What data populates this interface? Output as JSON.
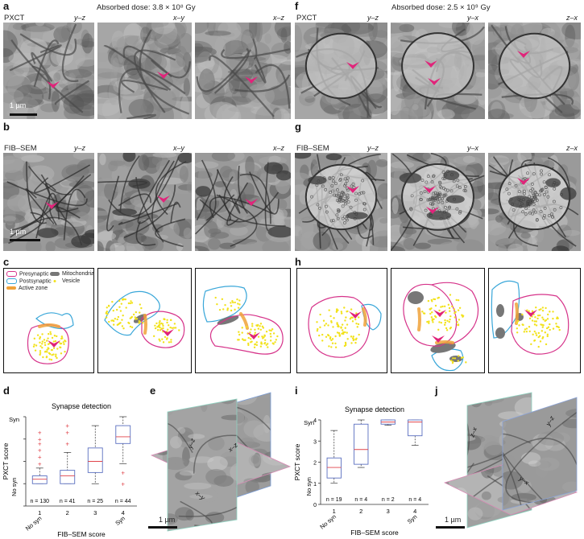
{
  "panels": {
    "a": "a",
    "b": "b",
    "c": "c",
    "d": "d",
    "e": "e",
    "f": "f",
    "g": "g",
    "h": "h",
    "i": "i",
    "j": "j"
  },
  "left": {
    "dose": "Absorbed dose: 3.8 × 10⁸ Gy",
    "row1_label": "PXCT",
    "row2_label": "FIB–SEM",
    "orients": [
      "y–z",
      "x–y",
      "x–z"
    ],
    "scale_label_a": "1 µm",
    "scale_label_b": "1 µm"
  },
  "right": {
    "dose": "Absorbed dose: 2.5 × 10⁹ Gy",
    "row1_label": "PXCT",
    "row2_label": "FIB–SEM",
    "orients": [
      "y–z",
      "y–x",
      "z–x"
    ]
  },
  "legend": {
    "presynaptic": "Presynaptic",
    "postsynaptic": "Postsynaptic",
    "active_zone": "Active zone",
    "mitochondria": "Mitochondria",
    "vesicle": "Vesicle",
    "colors": {
      "presynaptic": "#d6338a",
      "postsynaptic": "#3aa7d9",
      "active_zone": "#f0a23a",
      "mitochondria": "#777777",
      "vesicle": "#f2e21c",
      "arrow": "#e0247a"
    }
  },
  "volume_e": {
    "labels": [
      "y–z",
      "x–z",
      "x–y"
    ],
    "scale": "1 µm"
  },
  "volume_j": {
    "labels": [
      "z–x",
      "y–z",
      "y–x"
    ],
    "scale": "1 µm"
  },
  "chart_data": [
    {
      "type": "box",
      "title": "Synapse detection",
      "xlabel": "FIB–SEM score",
      "ylabel": "PXCT score",
      "categories": [
        "1",
        "2",
        "3",
        "4"
      ],
      "category_sublabels": [
        "No syn",
        "",
        "",
        "Syn"
      ],
      "ytick_labels": [
        "0",
        "1",
        "2",
        "3",
        "4"
      ],
      "y_end_labels": {
        "top": "Syn",
        "bottom": "No syn"
      },
      "ylim": [
        0,
        4
      ],
      "n_labels": [
        "n = 130",
        "n = 41",
        "n = 25",
        "n = 44"
      ],
      "boxes": [
        {
          "min": 1.0,
          "q1": 1.0,
          "median": 1.2,
          "q3": 1.35,
          "max": 1.7,
          "outliers": [
            1.9,
            2.2,
            2.5,
            2.8,
            3.0,
            3.3
          ]
        },
        {
          "min": 1.0,
          "q1": 1.0,
          "median": 1.35,
          "q3": 1.6,
          "max": 2.4,
          "outliers": [
            2.8,
            3.3,
            3.6
          ]
        },
        {
          "min": 1.0,
          "q1": 1.5,
          "median": 2.0,
          "q3": 2.6,
          "max": 3.6,
          "outliers": []
        },
        {
          "min": 1.9,
          "q1": 2.8,
          "median": 3.1,
          "q3": 3.6,
          "max": 4.0,
          "outliers": [
            1.5,
            1.0
          ]
        }
      ]
    },
    {
      "type": "box",
      "title": "Synapse detection",
      "xlabel": "FIB–SEM score",
      "ylabel": "PXCT score",
      "categories": [
        "1",
        "2",
        "3",
        "4"
      ],
      "category_sublabels": [
        "No syn",
        "",
        "",
        "Syn"
      ],
      "ytick_labels": [
        "0",
        "1",
        "2",
        "3",
        "4"
      ],
      "y_end_labels": {
        "top": "Syn",
        "bottom": "No syn"
      },
      "ylim": [
        0,
        4
      ],
      "n_labels": [
        "n = 19",
        "n = 4",
        "n = 2",
        "n = 4"
      ],
      "boxes": [
        {
          "min": 1.0,
          "q1": 1.25,
          "median": 1.75,
          "q3": 2.2,
          "max": 3.5,
          "outliers": []
        },
        {
          "min": 1.75,
          "q1": 1.9,
          "median": 2.6,
          "q3": 3.8,
          "max": 4.0,
          "outliers": []
        },
        {
          "min": 3.75,
          "q1": 3.8,
          "median": 3.9,
          "q3": 4.0,
          "max": 4.0,
          "outliers": []
        },
        {
          "min": 2.8,
          "q1": 3.25,
          "median": 3.9,
          "q3": 4.0,
          "max": 4.0,
          "outliers": []
        }
      ]
    }
  ]
}
